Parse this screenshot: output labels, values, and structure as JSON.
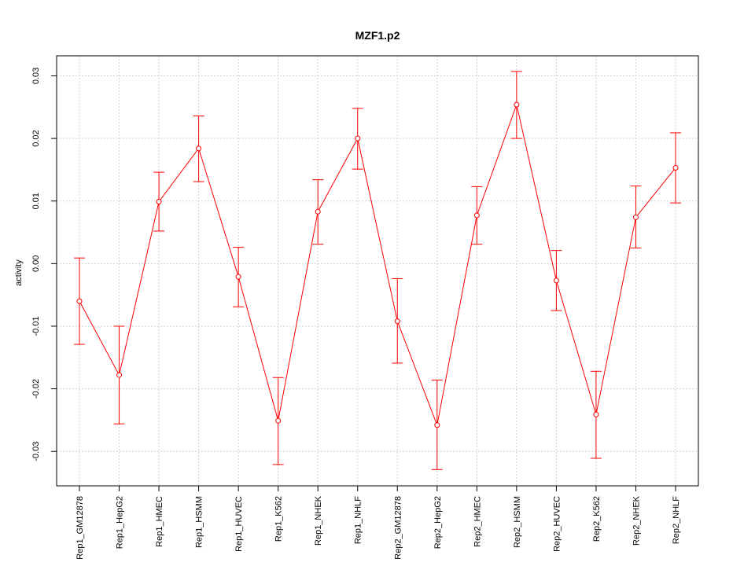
{
  "chart_data": {
    "type": "line",
    "title": "MZF1.p2",
    "xlabel": "",
    "ylabel": "activity",
    "ylim": [
      -0.0355,
      0.0332
    ],
    "yticks": [
      -0.03,
      -0.02,
      -0.01,
      0.0,
      0.01,
      0.02,
      0.03
    ],
    "ytick_labels": [
      "-0.03",
      "-0.02",
      "-0.01",
      "0.00",
      "0.01",
      "0.02",
      "0.03"
    ],
    "grid": true,
    "color": "#ff0000",
    "categories": [
      "Rep1_GM12878",
      "Rep1_HepG2",
      "Rep1_HMEC",
      "Rep1_HSMM",
      "Rep1_HUVEC",
      "Rep1_K562",
      "Rep1_NHEK",
      "Rep1_NHLF",
      "Rep2_GM12878",
      "Rep2_HepG2",
      "Rep2_HMEC",
      "Rep2_HSMM",
      "Rep2_HUVEC",
      "Rep2_K562",
      "Rep2_NHEK",
      "Rep2_NHLF"
    ],
    "series": [
      {
        "values": [
          -0.006,
          -0.0178,
          0.0099,
          0.0184,
          -0.0021,
          -0.0251,
          0.0083,
          0.02,
          -0.0092,
          -0.0258,
          0.0077,
          0.0254,
          -0.0027,
          -0.0241,
          0.0074,
          0.0153
        ],
        "lower": [
          -0.0129,
          -0.0256,
          0.0052,
          0.0131,
          -0.0069,
          -0.0321,
          0.0031,
          0.0151,
          -0.0159,
          -0.0329,
          0.0031,
          0.02,
          -0.0075,
          -0.0311,
          0.0025,
          0.0097
        ],
        "upper": [
          0.0009,
          -0.01,
          0.0146,
          0.0236,
          0.0026,
          -0.0182,
          0.0134,
          0.0248,
          -0.0024,
          -0.0186,
          0.0123,
          0.0307,
          0.0021,
          -0.0172,
          0.0124,
          0.0209
        ]
      }
    ]
  }
}
